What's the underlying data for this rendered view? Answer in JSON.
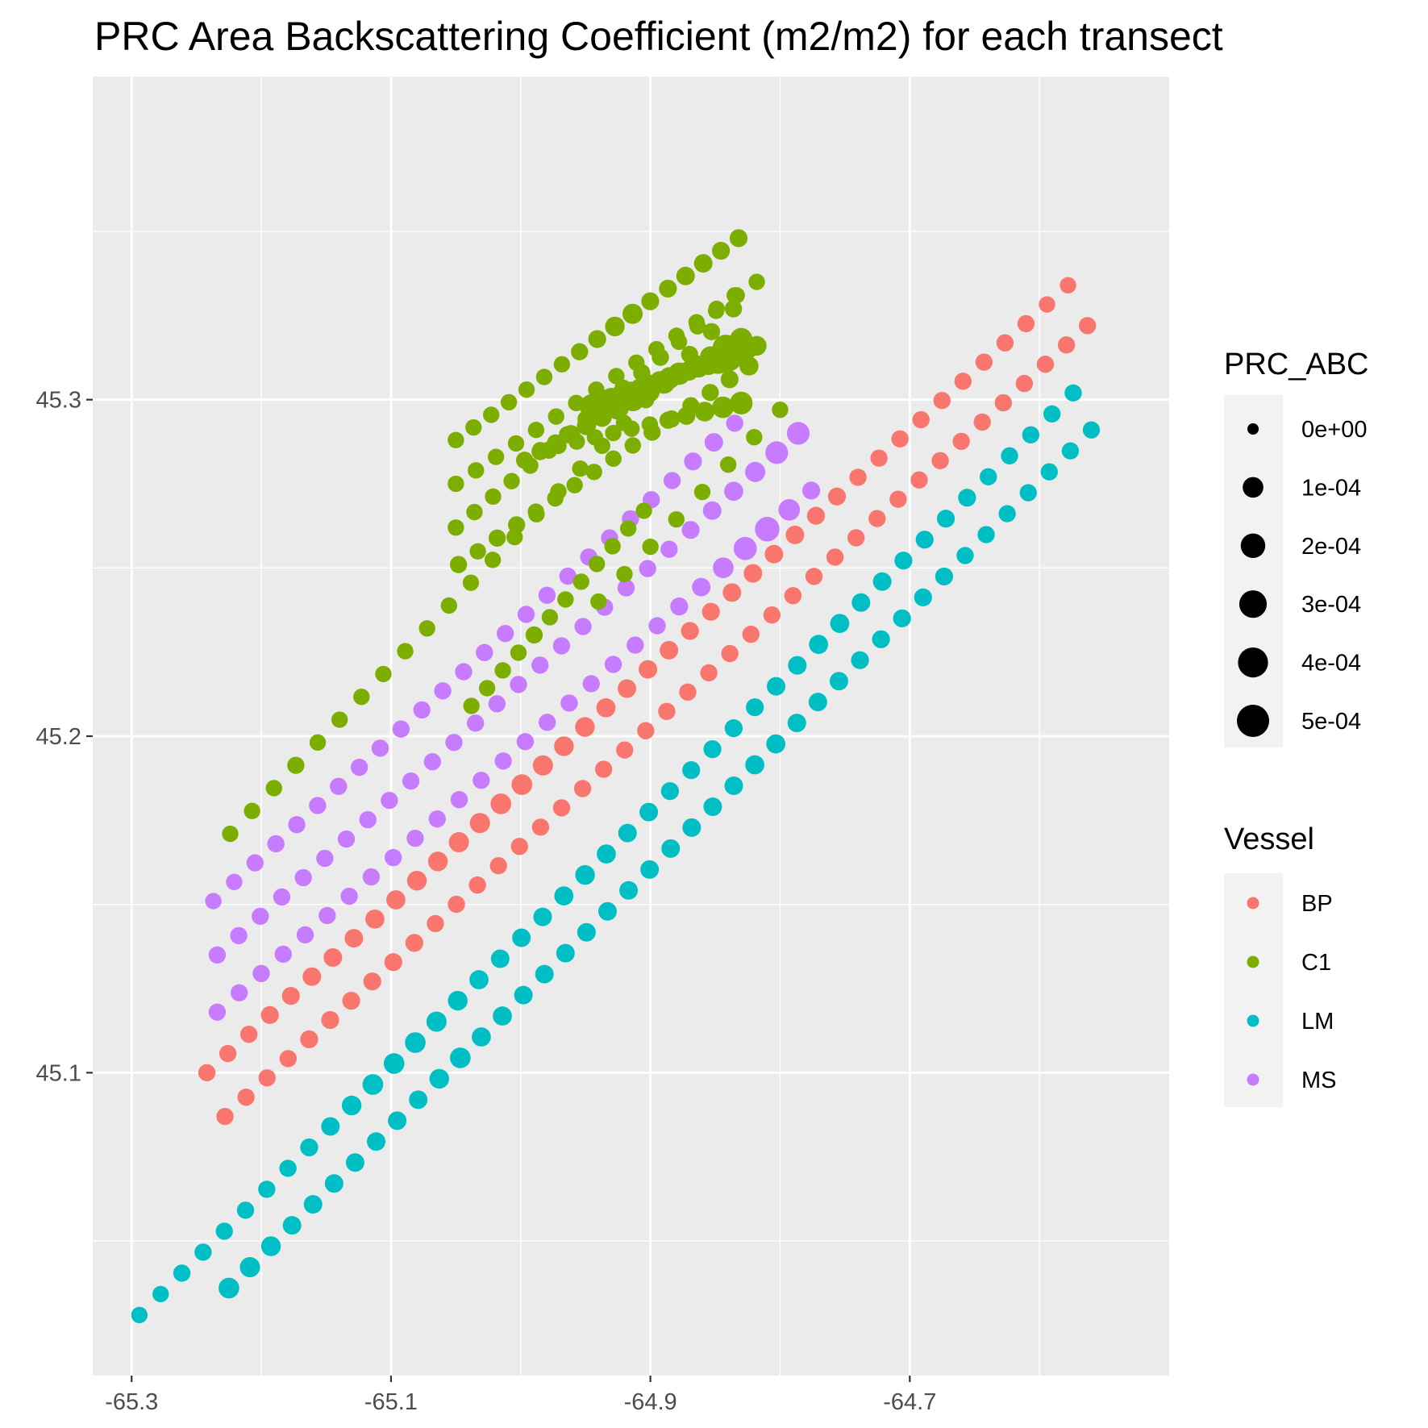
{
  "chart_data": {
    "type": "scatter",
    "title": "PRC Area Backscattering Coefficient (m2/m2) for each transect",
    "xlabel": "",
    "ylabel": "",
    "xlim": [
      -65.33,
      -64.5
    ],
    "ylim": [
      45.01,
      45.396
    ],
    "x_ticks": [
      -65.3,
      -65.1,
      -64.9,
      -64.7
    ],
    "x_tick_labels": [
      "-65.3",
      "-65.1",
      "-64.9",
      "-64.7"
    ],
    "y_ticks": [
      45.1,
      45.2,
      45.3
    ],
    "y_tick_labels": [
      "45.1",
      "45.2",
      "45.3"
    ],
    "grid": true,
    "legend_position": "right",
    "size_legend": {
      "title": "PRC_ABC",
      "values": [
        0,
        0.0001,
        0.0002,
        0.0003,
        0.0004,
        0.0005
      ],
      "labels": [
        "0e+00",
        "1e-04",
        "2e-04",
        "3e-04",
        "4e-04",
        "5e-04"
      ]
    },
    "color_legend": {
      "title": "Vessel",
      "entries": [
        {
          "name": "BP",
          "color": "#F8766D"
        },
        {
          "name": "C1",
          "color": "#7CAE00"
        },
        {
          "name": "LM",
          "color": "#00BFC4"
        },
        {
          "name": "MS",
          "color": "#C77CFF"
        }
      ]
    },
    "series": [
      {
        "name": "BP",
        "color": "#F8766D",
        "transects": [
          {
            "start": [
              -65.242,
              45.1
            ],
            "end": [
              -64.578,
              45.334
            ],
            "n": 42,
            "abc": [
              4e-05,
              4e-05,
              4e-05,
              5e-05,
              5e-05,
              6e-05,
              6e-05,
              6e-05,
              7e-05,
              7e-05,
              8e-05,
              8e-05,
              9e-05,
              9e-05,
              0.0001,
              0.0001,
              9e-05,
              8e-05,
              8e-05,
              7e-05,
              6e-05,
              6e-05,
              6e-05,
              5e-05,
              5e-05,
              6e-05,
              6e-05,
              6e-05,
              6e-05,
              5e-05,
              5e-05,
              4e-05,
              4e-05,
              4e-05,
              4e-05,
              4e-05,
              4e-05,
              4e-05,
              4e-05,
              4e-05,
              3e-05,
              3e-05
            ]
          },
          {
            "start": [
              -65.228,
              45.087
            ],
            "end": [
              -64.563,
              45.322
            ],
            "n": 42,
            "abc": [
              4e-05,
              4e-05,
              4e-05,
              4e-05,
              5e-05,
              5e-05,
              5e-05,
              5e-05,
              5e-05,
              5e-05,
              4e-05,
              4e-05,
              4e-05,
              4e-05,
              4e-05,
              4e-05,
              4e-05,
              4e-05,
              4e-05,
              4e-05,
              4e-05,
              4e-05,
              4e-05,
              4e-05,
              4e-05,
              4e-05,
              4e-05,
              4e-05,
              4e-05,
              4e-05,
              4e-05,
              4e-05,
              4e-05,
              4e-05,
              4e-05,
              4e-05,
              4e-05,
              4e-05,
              4e-05,
              4e-05,
              4e-05,
              4e-05
            ]
          }
        ]
      },
      {
        "name": "LM",
        "color": "#00BFC4",
        "transects": [
          {
            "start": [
              -65.294,
              45.028
            ],
            "end": [
              -64.574,
              45.302
            ],
            "n": 45,
            "abc": [
              3e-05,
              3e-05,
              4e-05,
              4e-05,
              4e-05,
              4e-05,
              4e-05,
              4e-05,
              5e-05,
              6e-05,
              8e-05,
              0.0001,
              0.0001,
              0.0001,
              9e-05,
              8e-05,
              7e-05,
              6e-05,
              6e-05,
              6e-05,
              7e-05,
              8e-05,
              7e-05,
              6e-05,
              6e-05,
              5e-05,
              5e-05,
              5e-05,
              5e-05,
              5e-05,
              6e-05,
              6e-05,
              7e-05,
              7e-05,
              6e-05,
              6e-05,
              5e-05,
              5e-05,
              5e-05,
              5e-05,
              4e-05,
              4e-05,
              4e-05,
              4e-05,
              4e-05
            ]
          },
          {
            "start": [
              -65.225,
              45.036
            ],
            "end": [
              -64.56,
              45.291
            ],
            "n": 42,
            "abc": [
              0.0001,
              9e-05,
              8e-05,
              6e-05,
              6e-05,
              6e-05,
              6e-05,
              6e-05,
              6e-05,
              6e-05,
              8e-05,
              0.0001,
              7e-05,
              7e-05,
              6e-05,
              6e-05,
              6e-05,
              6e-05,
              6e-05,
              6e-05,
              6e-05,
              6e-05,
              6e-05,
              6e-05,
              6e-05,
              7e-05,
              7e-05,
              6e-05,
              6e-05,
              6e-05,
              5e-05,
              5e-05,
              5e-05,
              5e-05,
              5e-05,
              4e-05,
              4e-05,
              4e-05,
              4e-05,
              4e-05,
              4e-05,
              4e-05
            ]
          }
        ]
      },
      {
        "name": "MS",
        "color": "#C77CFF",
        "transects": [
          {
            "start": [
              -65.237,
              45.151
            ],
            "end": [
              -64.835,
              45.293
            ],
            "n": 26,
            "abc": [
              3e-05,
              3e-05,
              4e-05,
              4e-05,
              4e-05,
              4e-05,
              4e-05,
              4e-05,
              4e-05,
              4e-05,
              4e-05,
              4e-05,
              4e-05,
              4e-05,
              4e-05,
              4e-05,
              4e-05,
              4e-05,
              4e-05,
              4e-05,
              4e-05,
              4e-05,
              4e-05,
              5e-05,
              6e-05,
              4e-05
            ]
          },
          {
            "start": [
              -65.234,
              45.135
            ],
            "end": [
              -64.786,
              45.29
            ],
            "n": 28,
            "abc": [
              4e-05,
              4e-05,
              4e-05,
              4e-05,
              4e-05,
              4e-05,
              4e-05,
              4e-05,
              4e-05,
              4e-05,
              4e-05,
              4e-05,
              4e-05,
              4e-05,
              4e-05,
              4e-05,
              4e-05,
              4e-05,
              4e-05,
              4e-05,
              4e-05,
              4e-05,
              5e-05,
              6e-05,
              7e-05,
              9e-05,
              0.00015,
              0.00015
            ]
          },
          {
            "start": [
              -65.234,
              45.118
            ],
            "end": [
              -64.776,
              45.273
            ],
            "n": 28,
            "abc": [
              4e-05,
              4e-05,
              4e-05,
              4e-05,
              4e-05,
              4e-05,
              4e-05,
              4e-05,
              4e-05,
              4e-05,
              4e-05,
              4e-05,
              4e-05,
              4e-05,
              4e-05,
              4e-05,
              4e-05,
              4e-05,
              4e-05,
              4e-05,
              4e-05,
              5e-05,
              6e-05,
              0.0001,
              0.00016,
              0.0002,
              0.00012,
              5e-05
            ]
          }
        ]
      },
      {
        "name": "C1",
        "color": "#7CAE00",
        "transects": [
          {
            "start": [
              -65.224,
              45.171
            ],
            "end": [
              -64.836,
              45.327
            ],
            "n": 24,
            "abc": [
              3e-05,
              3e-05,
              3e-05,
              4e-05,
              3e-05,
              3e-05,
              3e-05,
              3e-05,
              3e-05,
              3e-05,
              3e-05,
              3e-05,
              3e-05,
              3e-05,
              3e-05,
              3e-05,
              3e-05,
              3e-05,
              3e-05,
              3e-05,
              4e-05,
              4e-05,
              4e-05,
              4e-05
            ]
          },
          {
            "start": [
              -65.05,
              45.288
            ],
            "end": [
              -64.832,
              45.348
            ],
            "n": 17,
            "abc": [
              3e-05,
              3e-05,
              3e-05,
              3e-05,
              3e-05,
              3e-05,
              3e-05,
              4e-05,
              5e-05,
              8e-05,
              9e-05,
              5e-05,
              5e-05,
              6e-05,
              6e-05,
              5e-05,
              5e-05
            ]
          },
          {
            "start": [
              -65.05,
              45.275
            ],
            "end": [
              -64.818,
              45.335
            ],
            "n": 16,
            "abc": [
              3e-05,
              3e-05,
              3e-05,
              3e-05,
              3e-05,
              3e-05,
              3e-05,
              3e-05,
              3e-05,
              3e-05,
              3e-05,
              3e-05,
              3e-05,
              3e-05,
              3e-05,
              3e-05
            ]
          },
          {
            "start": [
              -65.05,
              45.262
            ],
            "end": [
              -64.835,
              45.331
            ],
            "n": 16,
            "abc": [
              3e-05,
              3e-05,
              3e-05,
              3e-05,
              3e-05,
              4e-05,
              4e-05,
              4e-05,
              3e-05,
              4e-05,
              4e-05,
              4e-05,
              3e-05,
              3e-05,
              3e-05,
              3e-05
            ]
          },
          {
            "start": [
              -65.048,
              45.251
            ],
            "end": [
              -64.824,
              45.31
            ],
            "n": 16,
            "abc": [
              4e-05,
              3e-05,
              4e-05,
              4e-05,
              3e-05,
              3e-05,
              3e-05,
              3e-05,
              3e-05,
              3e-05,
              4e-05,
              4e-05,
              4e-05,
              4e-05,
              5e-05,
              7e-05
            ]
          },
          {
            "start": [
              -64.997,
              45.282
            ],
            "end": [
              -64.83,
              45.318
            ],
            "n": 15,
            "abc": [
              4e-05,
              4e-05,
              4e-05,
              6e-05,
              7e-05,
              8e-05,
              0.00014,
              0.00016,
              0.00016,
              0.00015,
              0.00014,
              0.0001,
              9e-05,
              0.00025,
              0.00014
            ]
          },
          {
            "start": [
              -64.945,
              45.298
            ],
            "end": [
              -64.818,
              45.316
            ],
            "n": 18,
            "abc": [
              0.0002,
              0.00017,
              0.00015,
              0.00012,
              0.00011,
              0.0001,
              0.0001,
              0.0001,
              0.00012,
              0.0001,
              8e-05,
              0.0001,
              0.00015,
              0.0003,
              0.0004,
              0.00012,
              9e-05,
              8e-05
            ]
          },
          {
            "start": [
              -64.985,
              45.285
            ],
            "end": [
              -64.83,
              45.299
            ],
            "n": 12,
            "abc": [
              3e-05,
              3e-05,
              3e-05,
              3e-05,
              3e-05,
              3e-05,
              3e-05,
              4e-05,
              5e-05,
              8e-05,
              0.00012,
              0.00015
            ]
          },
          {
            "start": [
              -65.038,
              45.209
            ],
            "end": [
              -64.905,
              45.267
            ],
            "n": 12,
            "abc": [
              3e-05,
              3e-05,
              3e-05,
              3e-05,
              4e-05,
              3e-05,
              3e-05,
              3e-05,
              3e-05,
              3e-05,
              3e-05,
              3e-05
            ]
          },
          {
            "start": [
              -64.94,
              45.24
            ],
            "end": [
              -64.8,
              45.297
            ],
            "n": 8,
            "abc": [
              3e-05,
              3e-05,
              3e-05,
              3e-05,
              3e-05,
              3e-05,
              3e-05,
              3e-05
            ]
          }
        ]
      }
    ]
  }
}
